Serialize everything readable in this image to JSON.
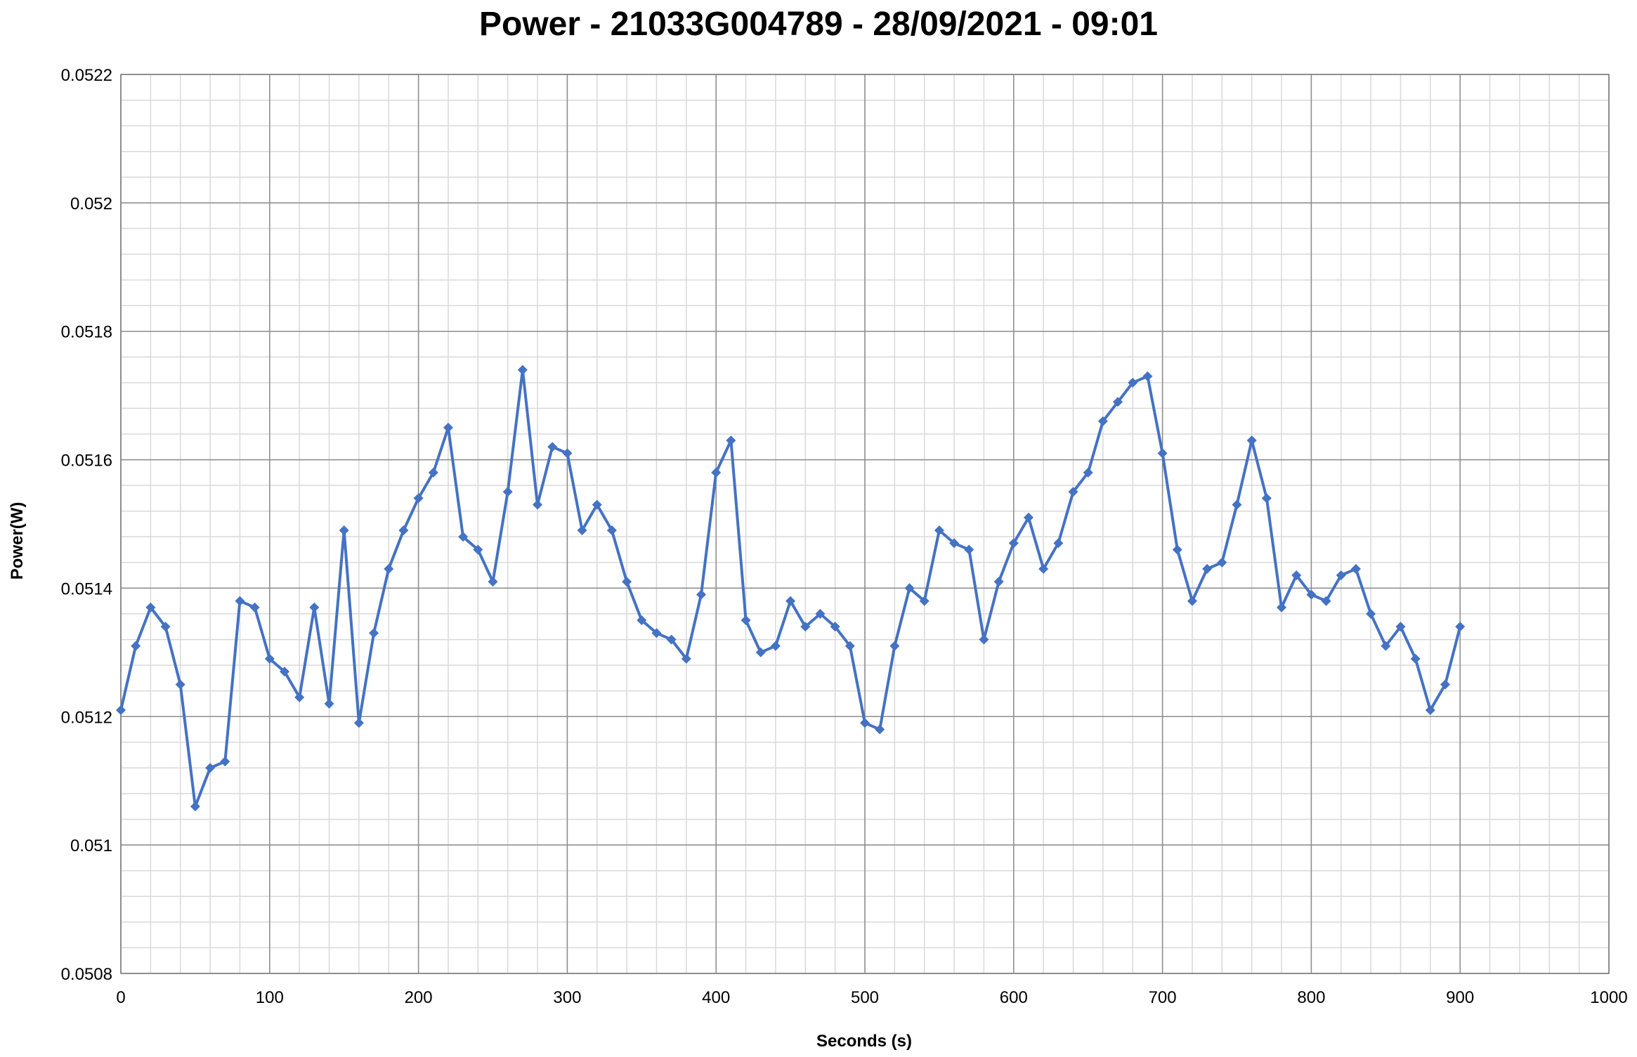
{
  "chart_data": {
    "type": "scatter",
    "title": "Power - 21033G004789 - 28/09/2021 - 09:01",
    "xlabel": "Seconds (s)",
    "ylabel": "Power(W)",
    "xlim": [
      0,
      1000
    ],
    "ylim": [
      0.0508,
      0.0522
    ],
    "x_ticks": [
      "0",
      "100",
      "200",
      "300",
      "400",
      "500",
      "600",
      "700",
      "800",
      "900",
      "1000"
    ],
    "y_ticks": [
      "0.0508",
      "0.051",
      "0.0512",
      "0.0514",
      "0.0516",
      "0.0518",
      "0.052",
      "0.0522"
    ],
    "x_tick_values": [
      0,
      100,
      200,
      300,
      400,
      500,
      600,
      700,
      800,
      900,
      1000
    ],
    "y_tick_values": [
      0.0508,
      0.051,
      0.0512,
      0.0514,
      0.0516,
      0.0518,
      0.052,
      0.0522
    ],
    "grid": {
      "major": true,
      "minor": true,
      "x_minor_step": 20,
      "y_minor_step": 4e-05
    },
    "legend": "none",
    "series": [
      {
        "color": "#4472C4",
        "marker": "diamond",
        "line": true,
        "x": [
          0,
          10,
          20,
          30,
          40,
          50,
          60,
          70,
          80,
          90,
          100,
          110,
          120,
          130,
          140,
          150,
          160,
          170,
          180,
          190,
          200,
          210,
          220,
          230,
          240,
          250,
          260,
          270,
          280,
          290,
          300,
          310,
          320,
          330,
          340,
          350,
          360,
          370,
          380,
          390,
          400,
          410,
          420,
          430,
          440,
          450,
          460,
          470,
          480,
          490,
          500,
          510,
          520,
          530,
          540,
          550,
          560,
          570,
          580,
          590,
          600,
          610,
          620,
          630,
          640,
          650,
          660,
          670,
          680,
          690,
          700,
          710,
          720,
          730,
          740,
          750,
          760,
          770,
          780,
          790,
          800,
          810,
          820,
          830,
          840,
          850,
          860,
          870,
          880,
          890,
          900
        ],
        "y": [
          0.05121,
          0.05131,
          0.05137,
          0.05134,
          0.05125,
          0.05106,
          0.05112,
          0.05113,
          0.05138,
          0.05137,
          0.05129,
          0.05127,
          0.05123,
          0.05137,
          0.05122,
          0.05149,
          0.05119,
          0.05133,
          0.05143,
          0.05149,
          0.05154,
          0.05158,
          0.05165,
          0.05148,
          0.05146,
          0.05141,
          0.05155,
          0.05174,
          0.05153,
          0.05162,
          0.05161,
          0.05149,
          0.05153,
          0.05149,
          0.05141,
          0.05135,
          0.05133,
          0.05132,
          0.05129,
          0.05139,
          0.05158,
          0.05163,
          0.05135,
          0.0513,
          0.05131,
          0.05138,
          0.05134,
          0.05136,
          0.05134,
          0.05131,
          0.05119,
          0.05118,
          0.05131,
          0.0514,
          0.05138,
          0.05149,
          0.05147,
          0.05146,
          0.05132,
          0.05141,
          0.05147,
          0.05151,
          0.05143,
          0.05147,
          0.05155,
          0.05158,
          0.05166,
          0.05169,
          0.05172,
          0.05173,
          0.05161,
          0.05146,
          0.05138,
          0.05143,
          0.05144,
          0.05153,
          0.05163,
          0.05154,
          0.05137,
          0.05142,
          0.05139,
          0.05138,
          0.05142,
          0.05143,
          0.05136,
          0.05131,
          0.05134,
          0.05129,
          0.05121,
          0.05125,
          0.05134
        ]
      }
    ]
  }
}
